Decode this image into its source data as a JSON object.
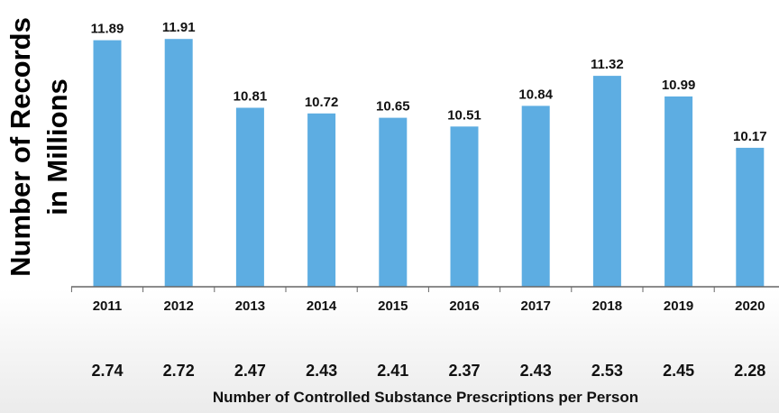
{
  "chart_data": {
    "type": "bar",
    "categories": [
      "2011",
      "2012",
      "2013",
      "2014",
      "2015",
      "2016",
      "2017",
      "2018",
      "2019",
      "2020"
    ],
    "values": [
      11.89,
      11.91,
      10.81,
      10.72,
      10.65,
      10.51,
      10.84,
      11.32,
      10.99,
      10.17
    ],
    "value_labels": [
      "11.89",
      "11.91",
      "10.81",
      "10.72",
      "10.65",
      "10.51",
      "10.84",
      "11.32",
      "10.99",
      "10.17"
    ],
    "secondary_row": [
      "2.74",
      "2.72",
      "2.47",
      "2.43",
      "2.41",
      "2.37",
      "2.43",
      "2.53",
      "2.45",
      "2.28"
    ],
    "ylabel_line1": "Number of Records",
    "ylabel_line2": "in Millions",
    "xlabel": "Number of Controlled Substance Prescriptions per Person",
    "ylim": [
      7.95,
      12.1
    ],
    "bar_color": "#5dade2",
    "grid": false,
    "legend": "none"
  }
}
